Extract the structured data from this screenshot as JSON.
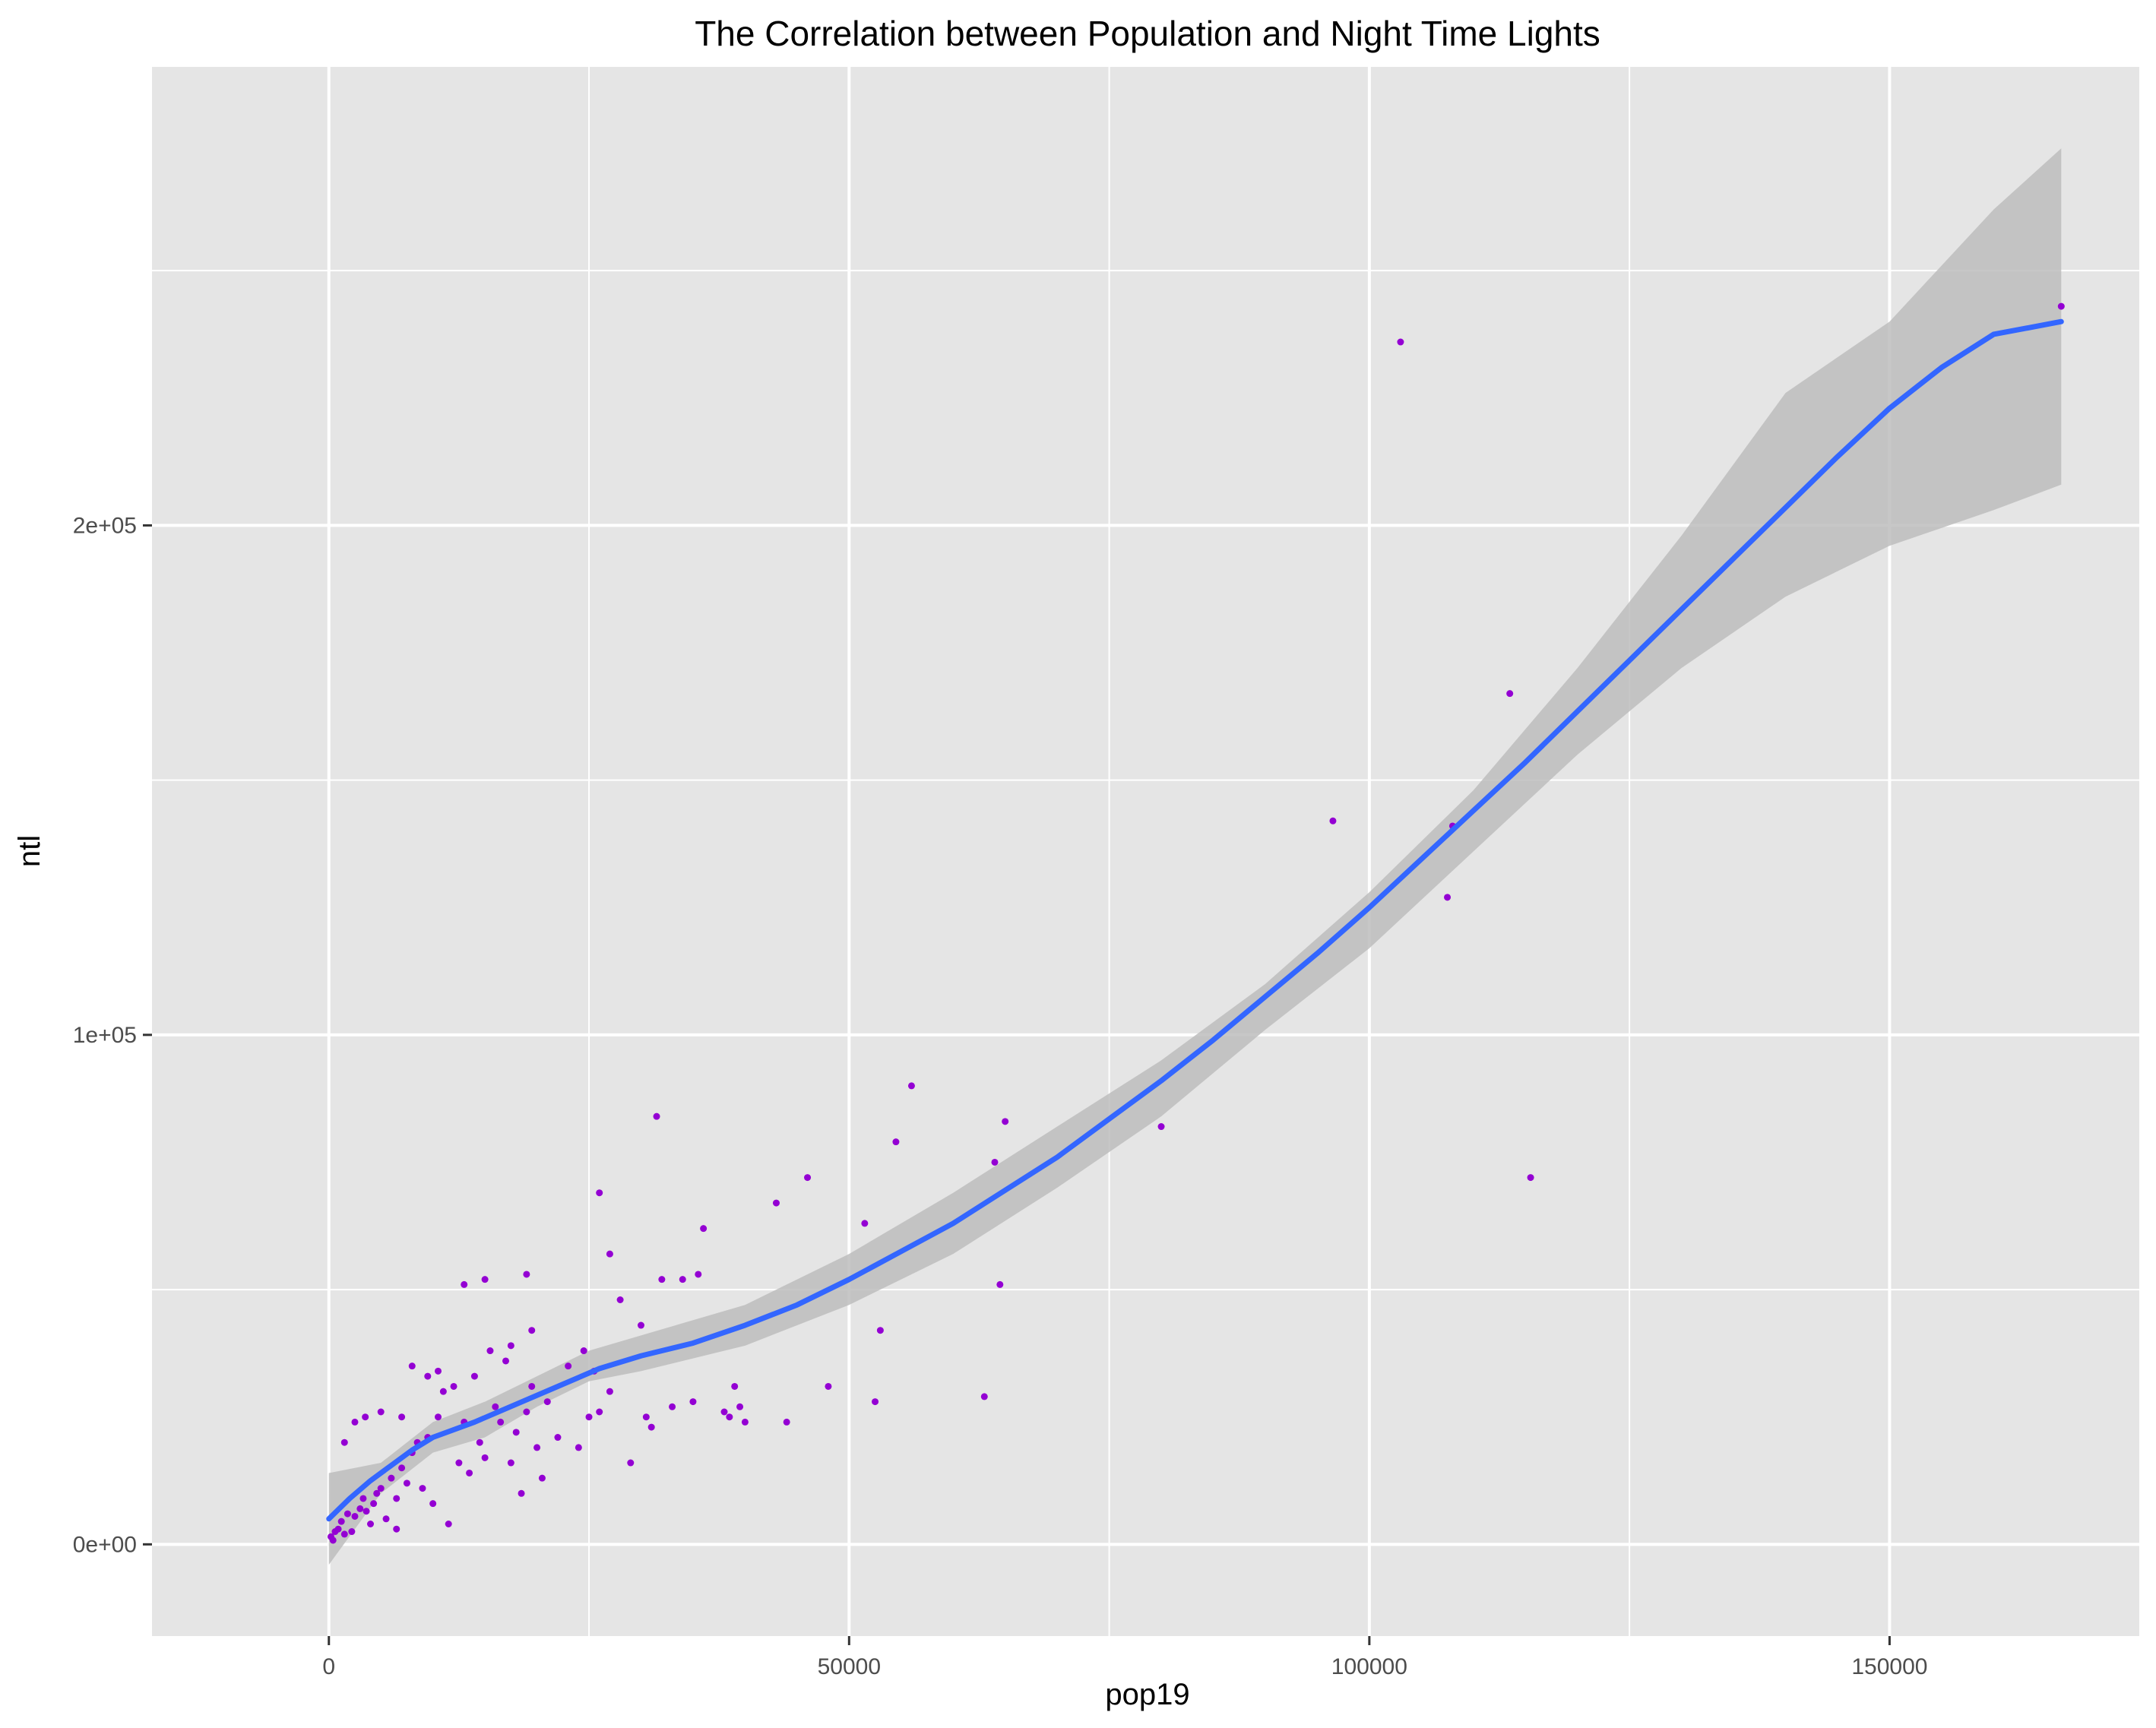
{
  "chart_data": {
    "type": "scatter",
    "title": "The Correlation between Population and Night Time Lights",
    "xlabel": "pop19",
    "ylabel": "ntl",
    "xlim": [
      -17000,
      174000
    ],
    "ylim": [
      -18000,
      290000
    ],
    "x_ticks": [
      0,
      50000,
      100000,
      150000
    ],
    "x_tick_labels": [
      "0",
      "50000",
      "100000",
      "150000"
    ],
    "y_ticks": [
      0,
      100000,
      200000
    ],
    "y_tick_labels": [
      "0e+00",
      "1e+05",
      "2e+05"
    ],
    "grid": true,
    "legend": "none",
    "colors": {
      "panel_background": "#e5e5e5",
      "grid_major": "#ffffff",
      "points": "#9400d3",
      "smooth_line": "#3366ff",
      "confidence_band": "#bdbdbd"
    },
    "points": [
      [
        200,
        1500
      ],
      [
        400,
        800
      ],
      [
        600,
        2500
      ],
      [
        900,
        3000
      ],
      [
        1200,
        4500
      ],
      [
        1500,
        2000
      ],
      [
        1800,
        6000
      ],
      [
        2200,
        2500
      ],
      [
        2500,
        5500
      ],
      [
        3000,
        7000
      ],
      [
        3300,
        9000
      ],
      [
        3600,
        6500
      ],
      [
        4000,
        4000
      ],
      [
        4300,
        8000
      ],
      [
        4600,
        10000
      ],
      [
        5000,
        11000
      ],
      [
        5500,
        5000
      ],
      [
        6000,
        13000
      ],
      [
        6500,
        9000
      ],
      [
        7000,
        15000
      ],
      [
        7500,
        12000
      ],
      [
        8000,
        18000
      ],
      [
        8500,
        20000
      ],
      [
        9000,
        11000
      ],
      [
        9500,
        21000
      ],
      [
        10000,
        8000
      ],
      [
        10500,
        25000
      ],
      [
        11000,
        30000
      ],
      [
        11500,
        4000
      ],
      [
        12000,
        31000
      ],
      [
        12500,
        16000
      ],
      [
        13000,
        24000
      ],
      [
        13500,
        14000
      ],
      [
        14000,
        33000
      ],
      [
        14500,
        20000
      ],
      [
        15000,
        17000
      ],
      [
        15500,
        38000
      ],
      [
        16000,
        27000
      ],
      [
        16500,
        24000
      ],
      [
        17000,
        36000
      ],
      [
        17500,
        16000
      ],
      [
        18000,
        22000
      ],
      [
        18500,
        10000
      ],
      [
        19000,
        26000
      ],
      [
        19500,
        31000
      ],
      [
        20000,
        19000
      ],
      [
        20500,
        13000
      ],
      [
        21000,
        28000
      ],
      [
        22000,
        21000
      ],
      [
        23000,
        35000
      ],
      [
        24000,
        19000
      ],
      [
        24500,
        38000
      ],
      [
        25000,
        25000
      ],
      [
        25500,
        34000
      ],
      [
        26000,
        26000
      ],
      [
        27000,
        30000
      ],
      [
        28000,
        48000
      ],
      [
        29000,
        16000
      ],
      [
        30000,
        43000
      ],
      [
        31000,
        23000
      ],
      [
        32000,
        52000
      ],
      [
        33000,
        27000
      ],
      [
        34000,
        52000
      ],
      [
        35000,
        28000
      ],
      [
        36000,
        62000
      ],
      [
        38000,
        26000
      ],
      [
        38500,
        25000
      ],
      [
        39000,
        31000
      ],
      [
        40000,
        24000
      ],
      [
        43000,
        67000
      ],
      [
        44000,
        24000
      ],
      [
        46000,
        72000
      ],
      [
        48000,
        31000
      ],
      [
        51500,
        63000
      ],
      [
        52500,
        28000
      ],
      [
        53000,
        42000
      ],
      [
        54500,
        79000
      ],
      [
        56000,
        90000
      ],
      [
        63000,
        29000
      ],
      [
        64000,
        75000
      ],
      [
        64500,
        51000
      ],
      [
        65000,
        83000
      ],
      [
        80000,
        82000
      ],
      [
        96500,
        142000
      ],
      [
        103000,
        236000
      ],
      [
        107500,
        127000
      ],
      [
        108000,
        141000
      ],
      [
        113500,
        167000
      ],
      [
        115500,
        72000
      ],
      [
        166500,
        243000
      ],
      [
        31500,
        84000
      ],
      [
        26000,
        69000
      ],
      [
        19000,
        53000
      ],
      [
        13000,
        51000
      ],
      [
        8000,
        35000
      ],
      [
        10500,
        34000
      ],
      [
        3500,
        25000
      ],
      [
        1500,
        20000
      ],
      [
        2500,
        24000
      ],
      [
        5000,
        26000
      ],
      [
        6500,
        3000
      ],
      [
        7000,
        25000
      ],
      [
        9500,
        33000
      ],
      [
        15000,
        52000
      ],
      [
        17500,
        39000
      ],
      [
        19500,
        42000
      ],
      [
        27000,
        57000
      ],
      [
        30500,
        25000
      ],
      [
        35500,
        53000
      ],
      [
        39500,
        27000
      ]
    ],
    "smooth_line": [
      [
        0,
        5000
      ],
      [
        2000,
        9000
      ],
      [
        4000,
        12500
      ],
      [
        6000,
        15500
      ],
      [
        8000,
        18500
      ],
      [
        10000,
        21000
      ],
      [
        14000,
        24000
      ],
      [
        18000,
        27500
      ],
      [
        22000,
        31000
      ],
      [
        26000,
        34500
      ],
      [
        30000,
        37000
      ],
      [
        35000,
        39500
      ],
      [
        40000,
        43000
      ],
      [
        45000,
        47000
      ],
      [
        50000,
        52000
      ],
      [
        55000,
        57500
      ],
      [
        60000,
        63000
      ],
      [
        65000,
        69500
      ],
      [
        70000,
        76000
      ],
      [
        75000,
        83500
      ],
      [
        80000,
        91000
      ],
      [
        85000,
        99000
      ],
      [
        90000,
        107500
      ],
      [
        95000,
        116000
      ],
      [
        100000,
        125000
      ],
      [
        105000,
        134500
      ],
      [
        110000,
        144000
      ],
      [
        115000,
        153500
      ],
      [
        120000,
        163500
      ],
      [
        125000,
        173500
      ],
      [
        130000,
        183500
      ],
      [
        135000,
        193500
      ],
      [
        140000,
        203500
      ],
      [
        145000,
        213500
      ],
      [
        150000,
        223000
      ],
      [
        155000,
        231000
      ],
      [
        160000,
        237500
      ],
      [
        166500,
        240000
      ]
    ],
    "band_upper": [
      [
        0,
        14000
      ],
      [
        5000,
        16000
      ],
      [
        10000,
        24000
      ],
      [
        15000,
        28000
      ],
      [
        20000,
        33000
      ],
      [
        25000,
        38000
      ],
      [
        30000,
        41000
      ],
      [
        40000,
        47000
      ],
      [
        50000,
        57000
      ],
      [
        60000,
        69000
      ],
      [
        70000,
        82000
      ],
      [
        80000,
        95000
      ],
      [
        90000,
        110000
      ],
      [
        100000,
        128000
      ],
      [
        110000,
        148000
      ],
      [
        120000,
        172000
      ],
      [
        130000,
        198000
      ],
      [
        140000,
        226000
      ],
      [
        150000,
        240000
      ],
      [
        160000,
        262000
      ],
      [
        166500,
        274000
      ]
    ],
    "band_lower": [
      [
        0,
        -4000
      ],
      [
        5000,
        10000
      ],
      [
        10000,
        18000
      ],
      [
        15000,
        21000
      ],
      [
        20000,
        27000
      ],
      [
        25000,
        32000
      ],
      [
        30000,
        34000
      ],
      [
        40000,
        39000
      ],
      [
        50000,
        47000
      ],
      [
        60000,
        57000
      ],
      [
        70000,
        70000
      ],
      [
        80000,
        84000
      ],
      [
        90000,
        101000
      ],
      [
        100000,
        117000
      ],
      [
        110000,
        136000
      ],
      [
        120000,
        155000
      ],
      [
        130000,
        172000
      ],
      [
        140000,
        186000
      ],
      [
        150000,
        196000
      ],
      [
        160000,
        203000
      ],
      [
        166500,
        208000
      ]
    ]
  }
}
